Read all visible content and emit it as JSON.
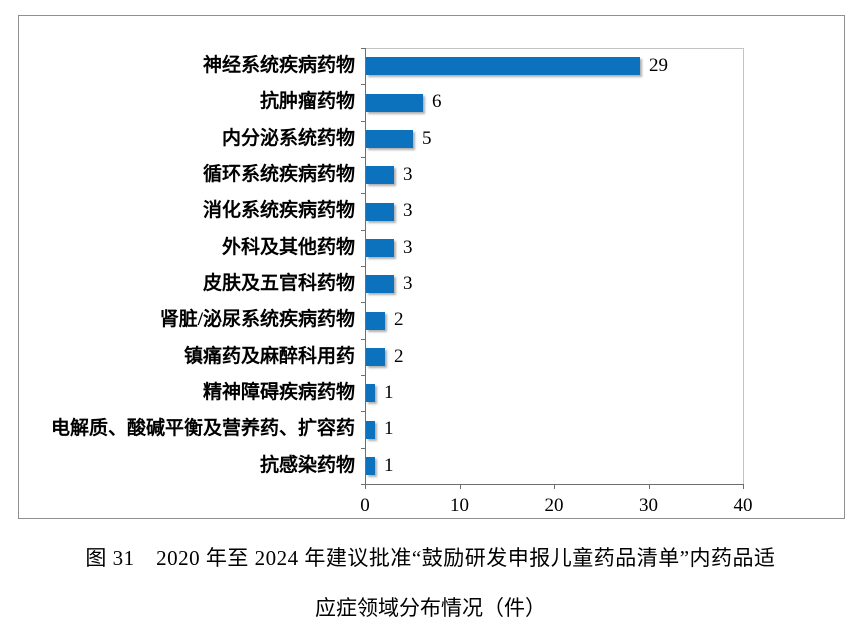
{
  "chart_data": {
    "type": "bar",
    "orientation": "horizontal",
    "categories": [
      "神经系统疾病药物",
      "抗肿瘤药物",
      "内分泌系统药物",
      "循环系统疾病药物",
      "消化系统疾病药物",
      "外科及其他药物",
      "皮肤及五官科药物",
      "肾脏/泌尿系统疾病药物",
      "镇痛药及麻醉科用药",
      "精神障碍疾病药物",
      "电解质、酸碱平衡及营养药、扩容药",
      "抗感染药物"
    ],
    "values": [
      29,
      6,
      5,
      3,
      3,
      3,
      3,
      2,
      2,
      1,
      1,
      1
    ],
    "value_labels": [
      "29",
      "6",
      "5",
      "3",
      "3",
      "3",
      "3",
      "2",
      "2",
      "1",
      "1",
      "1"
    ],
    "xlim": [
      0,
      40
    ],
    "x_ticks": [
      0,
      10,
      20,
      30,
      40
    ],
    "x_tick_labels": [
      "0",
      "10",
      "20",
      "30",
      "40"
    ],
    "grid": false,
    "legend": null,
    "bar_color": "#0d72bd",
    "title": ""
  },
  "caption": {
    "line1": "图 31　2020 年至 2024 年建议批准“鼓励研发申报儿童药品清单”内药品适",
    "line2": "应症领域分布情况（件）"
  }
}
